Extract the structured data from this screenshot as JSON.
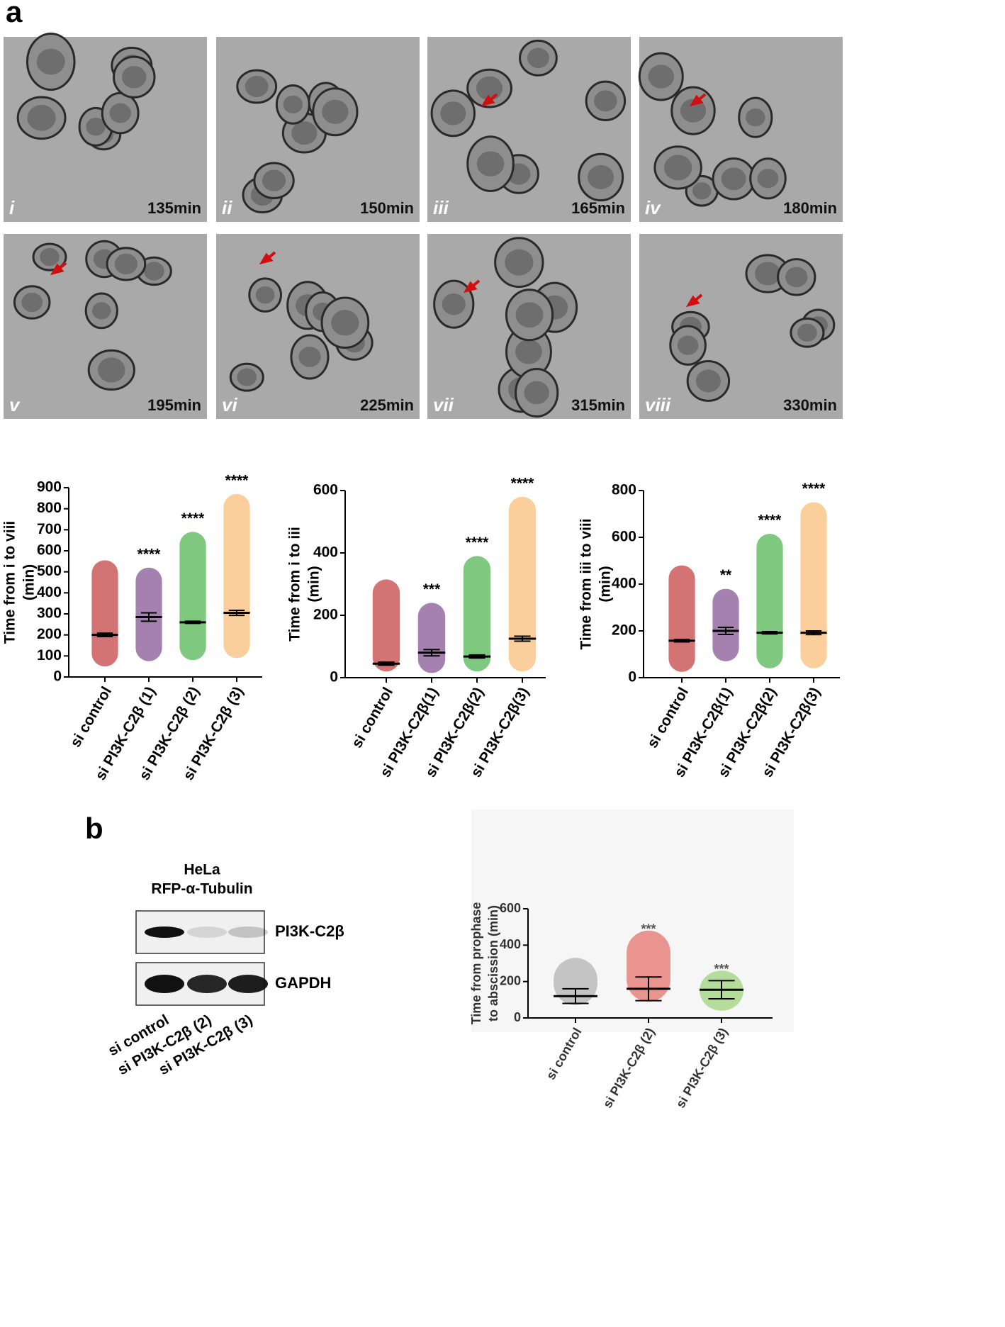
{
  "panel_a": {
    "label": "a",
    "images": [
      {
        "numeral": "i",
        "time": "135min"
      },
      {
        "numeral": "ii",
        "time": "150min"
      },
      {
        "numeral": "iii",
        "time": "165min"
      },
      {
        "numeral": "iv",
        "time": "180min"
      },
      {
        "numeral": "v",
        "time": "195min"
      },
      {
        "numeral": "vi",
        "time": "225min"
      },
      {
        "numeral": "vii",
        "time": "315min"
      },
      {
        "numeral": "viii",
        "time": "330min"
      }
    ],
    "charts": [
      {
        "type": "dot",
        "y_label": [
          "Time from i to viii",
          "(min)"
        ],
        "ylim": [
          0,
          900
        ],
        "yticks": [
          0,
          100,
          200,
          300,
          400,
          500,
          600,
          700,
          800,
          900
        ],
        "categories": [
          "si control",
          "si PI3K-C2β (1)",
          "si PI3K-C2β (2)",
          "si PI3K-C2β (3)"
        ],
        "significance": [
          null,
          "****",
          "****",
          "****"
        ],
        "groups": [
          {
            "color": "#b00000",
            "mean": 200,
            "error": 8,
            "min": 50,
            "max": 555
          },
          {
            "color": "#5b1a6e",
            "mean": 285,
            "error": 20,
            "min": 75,
            "max": 520
          },
          {
            "color": "#159a15",
            "mean": 260,
            "error": 5,
            "min": 80,
            "max": 690
          },
          {
            "color": "#f7a84a",
            "mean": 305,
            "error": 12,
            "min": 90,
            "max": 870
          }
        ]
      },
      {
        "type": "dot",
        "y_label": [
          "Time from i to iii",
          "(min)"
        ],
        "ylim": [
          0,
          600
        ],
        "yticks": [
          0,
          200,
          400,
          600
        ],
        "categories": [
          "si control",
          "si PI3K-C2β(1)",
          "si PI3K-C2β(2)",
          "si PI3K-C2β(3)"
        ],
        "significance": [
          null,
          "***",
          "****",
          "****"
        ],
        "groups": [
          {
            "color": "#b00000",
            "mean": 45,
            "error": 5,
            "min": 20,
            "max": 315
          },
          {
            "color": "#5b1a6e",
            "mean": 80,
            "error": 10,
            "min": 15,
            "max": 240
          },
          {
            "color": "#159a15",
            "mean": 68,
            "error": 5,
            "min": 20,
            "max": 390
          },
          {
            "color": "#f7a84a",
            "mean": 125,
            "error": 8,
            "min": 20,
            "max": 580
          }
        ]
      },
      {
        "type": "dot",
        "y_label": [
          "Time from iii to viii",
          "(min)"
        ],
        "ylim": [
          0,
          800
        ],
        "yticks": [
          0,
          200,
          400,
          600,
          800
        ],
        "categories": [
          "si control",
          "si PI3K-C2β(1)",
          "si PI3K-C2β(2)",
          "si PI3K-C2β(3)"
        ],
        "significance": [
          null,
          "**",
          "****",
          "****"
        ],
        "groups": [
          {
            "color": "#b00000",
            "mean": 158,
            "error": 5,
            "min": 25,
            "max": 480
          },
          {
            "color": "#5b1a6e",
            "mean": 200,
            "error": 15,
            "min": 70,
            "max": 380
          },
          {
            "color": "#159a15",
            "mean": 192,
            "error": 5,
            "min": 40,
            "max": 615
          },
          {
            "color": "#f7a84a",
            "mean": 192,
            "error": 8,
            "min": 40,
            "max": 750
          }
        ]
      }
    ]
  },
  "panel_b": {
    "label": "b",
    "blot": {
      "cell_line": "HeLa",
      "construct": "RFP-α-Tubulin",
      "bands": [
        "PI3K-C2β",
        "GAPDH"
      ],
      "lanes": [
        "si control",
        "si PI3K-C2β (2)",
        "si PI3K-C2β (3)"
      ]
    },
    "chart": {
      "type": "dot",
      "y_label": [
        "Time from prophase",
        "to abscission (min)"
      ],
      "ylim": [
        0,
        600
      ],
      "yticks": [
        0,
        200,
        400,
        600
      ],
      "categories": [
        "si control",
        "si PI3K-C2β (2)",
        "si PI3K-C2β (3)"
      ],
      "significance": [
        null,
        "***",
        "***"
      ],
      "groups": [
        {
          "color": "#9a9a9a",
          "mean": 120,
          "error": 40,
          "min": 70,
          "max": 330
        },
        {
          "color": "#e0443a",
          "mean": 160,
          "error": 65,
          "min": 90,
          "max": 480
        },
        {
          "color": "#7ec850",
          "mean": 155,
          "error": 50,
          "min": 40,
          "max": 260
        }
      ]
    }
  }
}
